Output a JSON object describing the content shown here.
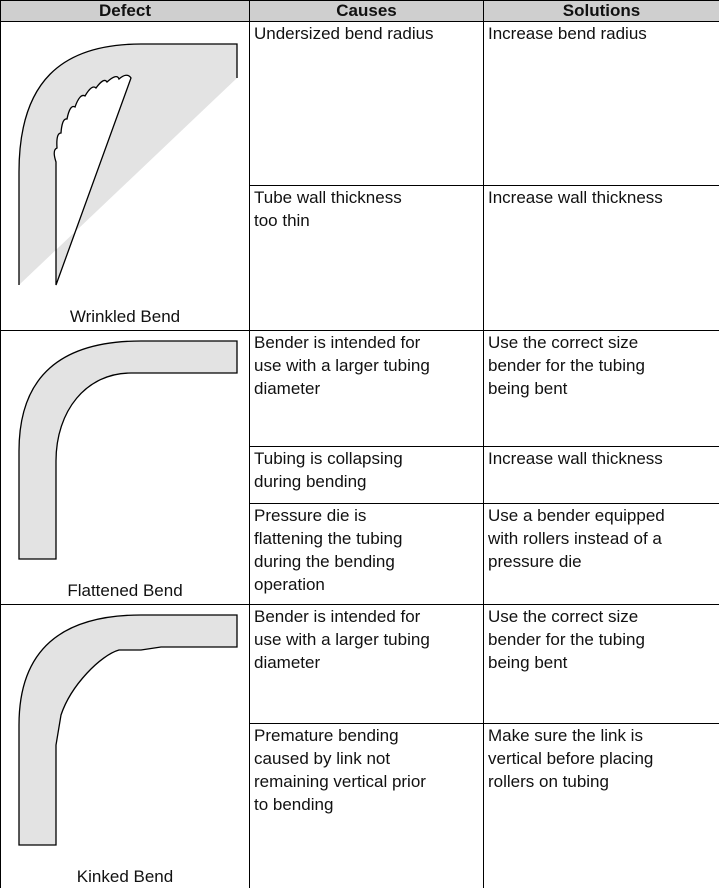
{
  "header": [
    "Defect",
    "Causes",
    "Solutions"
  ],
  "groups": [
    {
      "defect": "Wrinkled Bend",
      "rows": [
        {
          "cause": "Undersized bend radius",
          "solution": "Increase bend radius"
        },
        {
          "cause": "Tube wall thickness\ntoo thin",
          "solution": "Increase wall thickness"
        }
      ]
    },
    {
      "defect": "Flattened Bend",
      "rows": [
        {
          "cause": "Bender is intended for\nuse with a larger tubing\ndiameter",
          "solution": "Use the correct size\nbender for the tubing\nbeing bent"
        },
        {
          "cause": "Tubing is collapsing\nduring bending",
          "solution": "Increase wall thickness"
        },
        {
          "cause": "Pressure die is\nflattening the tubing\nduring the bending\noperation",
          "solution": "Use a bender equipped\nwith rollers instead of a\npressure die"
        }
      ]
    },
    {
      "defect": "Kinked Bend",
      "rows": [
        {
          "cause": "Bender is intended for\nuse with a larger tubing\ndiameter",
          "solution": "Use the correct size\nbender for the tubing\nbeing bent"
        },
        {
          "cause": "Premature bending\ncaused by link not\nremaining vertical prior\nto bending",
          "solution": "Make sure the link is\nvertical before placing\nrollers on tubing"
        }
      ]
    }
  ]
}
